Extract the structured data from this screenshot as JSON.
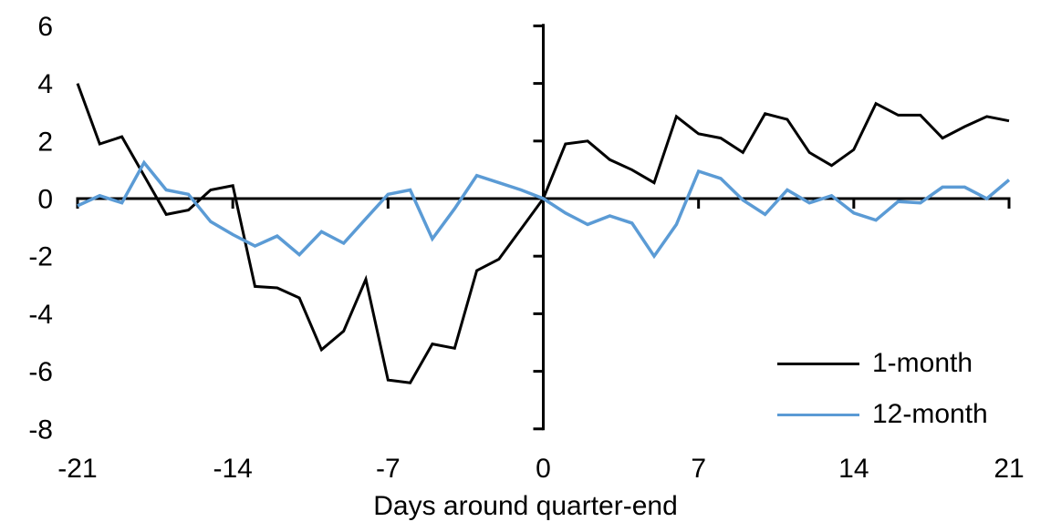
{
  "chart_data": {
    "type": "line",
    "title": "",
    "xlabel": "Days around quarter-end",
    "ylabel": "",
    "grid": false,
    "legend_position": "inside-bottom-right",
    "xlim": [
      -21,
      21
    ],
    "ylim": [
      -8,
      6.1
    ],
    "x_ticks": [
      -21,
      -14,
      -7,
      0,
      7,
      14,
      21
    ],
    "y_ticks": [
      6,
      4,
      2,
      0,
      -2,
      -4,
      -6,
      -8
    ],
    "axis_color": "#000000",
    "x": [
      -21,
      -20,
      -19,
      -18,
      -17,
      -16,
      -15,
      -14,
      -13,
      -12,
      -11,
      -10,
      -9,
      -8,
      -7,
      -6,
      -5,
      -4,
      -3,
      -2,
      -1,
      0,
      1,
      2,
      3,
      4,
      5,
      6,
      7,
      8,
      9,
      10,
      11,
      12,
      13,
      14,
      15,
      16,
      17,
      18,
      19,
      20,
      21
    ],
    "series": [
      {
        "name": "1-month",
        "color": "#000000",
        "width": 3,
        "values": [
          4.0,
          1.9,
          2.15,
          0.8,
          -0.55,
          -0.4,
          0.3,
          0.45,
          -3.05,
          -3.1,
          -3.45,
          -5.25,
          -4.6,
          -2.8,
          -6.3,
          -6.4,
          -5.05,
          -5.2,
          -2.5,
          -2.1,
          -1.05,
          0.0,
          1.9,
          2.0,
          1.35,
          1.0,
          0.55,
          2.85,
          2.25,
          2.1,
          1.6,
          2.95,
          2.75,
          1.6,
          1.15,
          1.7,
          3.3,
          2.9,
          2.9,
          2.1,
          2.5,
          2.85,
          2.7
        ]
      },
      {
        "name": "12-month",
        "color": "#5B9BD5",
        "width": 3.5,
        "values": [
          -0.25,
          0.1,
          -0.15,
          1.25,
          0.3,
          0.15,
          -0.8,
          -1.25,
          -1.65,
          -1.3,
          -1.95,
          -1.15,
          -1.55,
          -0.7,
          0.15,
          0.3,
          -1.4,
          -0.35,
          0.8,
          0.55,
          0.3,
          0.0,
          -0.5,
          -0.9,
          -0.6,
          -0.85,
          -2.0,
          -0.9,
          0.95,
          0.7,
          -0.05,
          -0.55,
          0.3,
          -0.15,
          0.1,
          -0.5,
          -0.75,
          -0.1,
          -0.15,
          0.4,
          0.4,
          0.0,
          0.65
        ]
      }
    ]
  }
}
